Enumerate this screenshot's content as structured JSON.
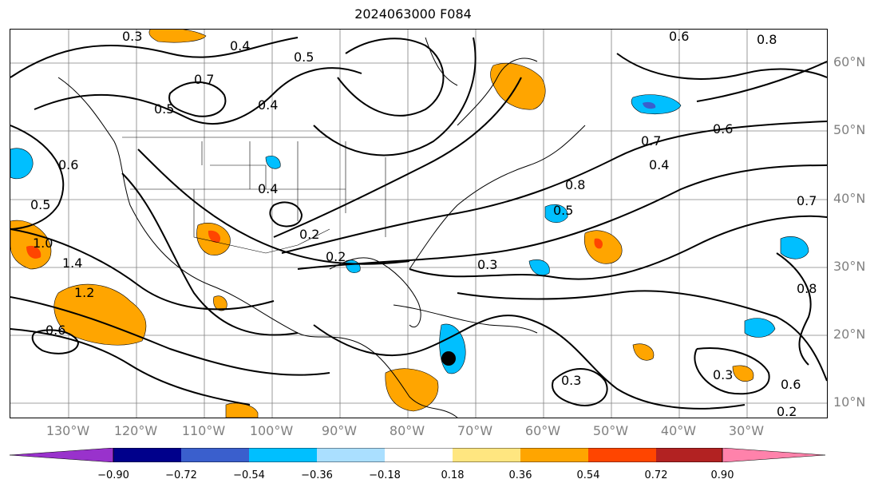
{
  "title": "2024063000 F084",
  "lat_labels": [
    "60°N",
    "50°N",
    "40°N",
    "30°N",
    "20°N",
    "10°N"
  ],
  "lon_labels": [
    "130°W",
    "120°W",
    "110°W",
    "100°W",
    "90°W",
    "80°W",
    "70°W",
    "60°W",
    "50°W",
    "40°W",
    "30°W"
  ],
  "colorbar": {
    "ticks": [
      "−0.90",
      "−0.72",
      "−0.54",
      "−0.36",
      "−0.18",
      "0.18",
      "0.36",
      "0.54",
      "0.72",
      "0.90"
    ],
    "colors": [
      "#9932cc",
      "#00008b",
      "#3a5fcd",
      "#00bfff",
      "#aadfff",
      "#ffffff",
      "#ffe680",
      "#ffa500",
      "#ff4500",
      "#b22222",
      "#ff82ab"
    ]
  },
  "contour_labels": [
    "0.4",
    "0.3",
    "0.5",
    "0.6",
    "0.8",
    "0.7",
    "0.5",
    "0.4",
    "0.6",
    "0.5",
    "1.0",
    "1.4",
    "1.2",
    "0.6",
    "0.4",
    "0.2",
    "0.2",
    "0.3",
    "0.7",
    "0.4",
    "0.8",
    "0.5",
    "0.6",
    "0.7",
    "0.8",
    "0.3",
    "0.3",
    "0.6",
    "0.2"
  ],
  "colors": {
    "frame": "#000000",
    "gridline": "#808080",
    "contour": "#000000",
    "positive": "#ffa500",
    "negative": "#00bfff",
    "marker": "#000000"
  }
}
